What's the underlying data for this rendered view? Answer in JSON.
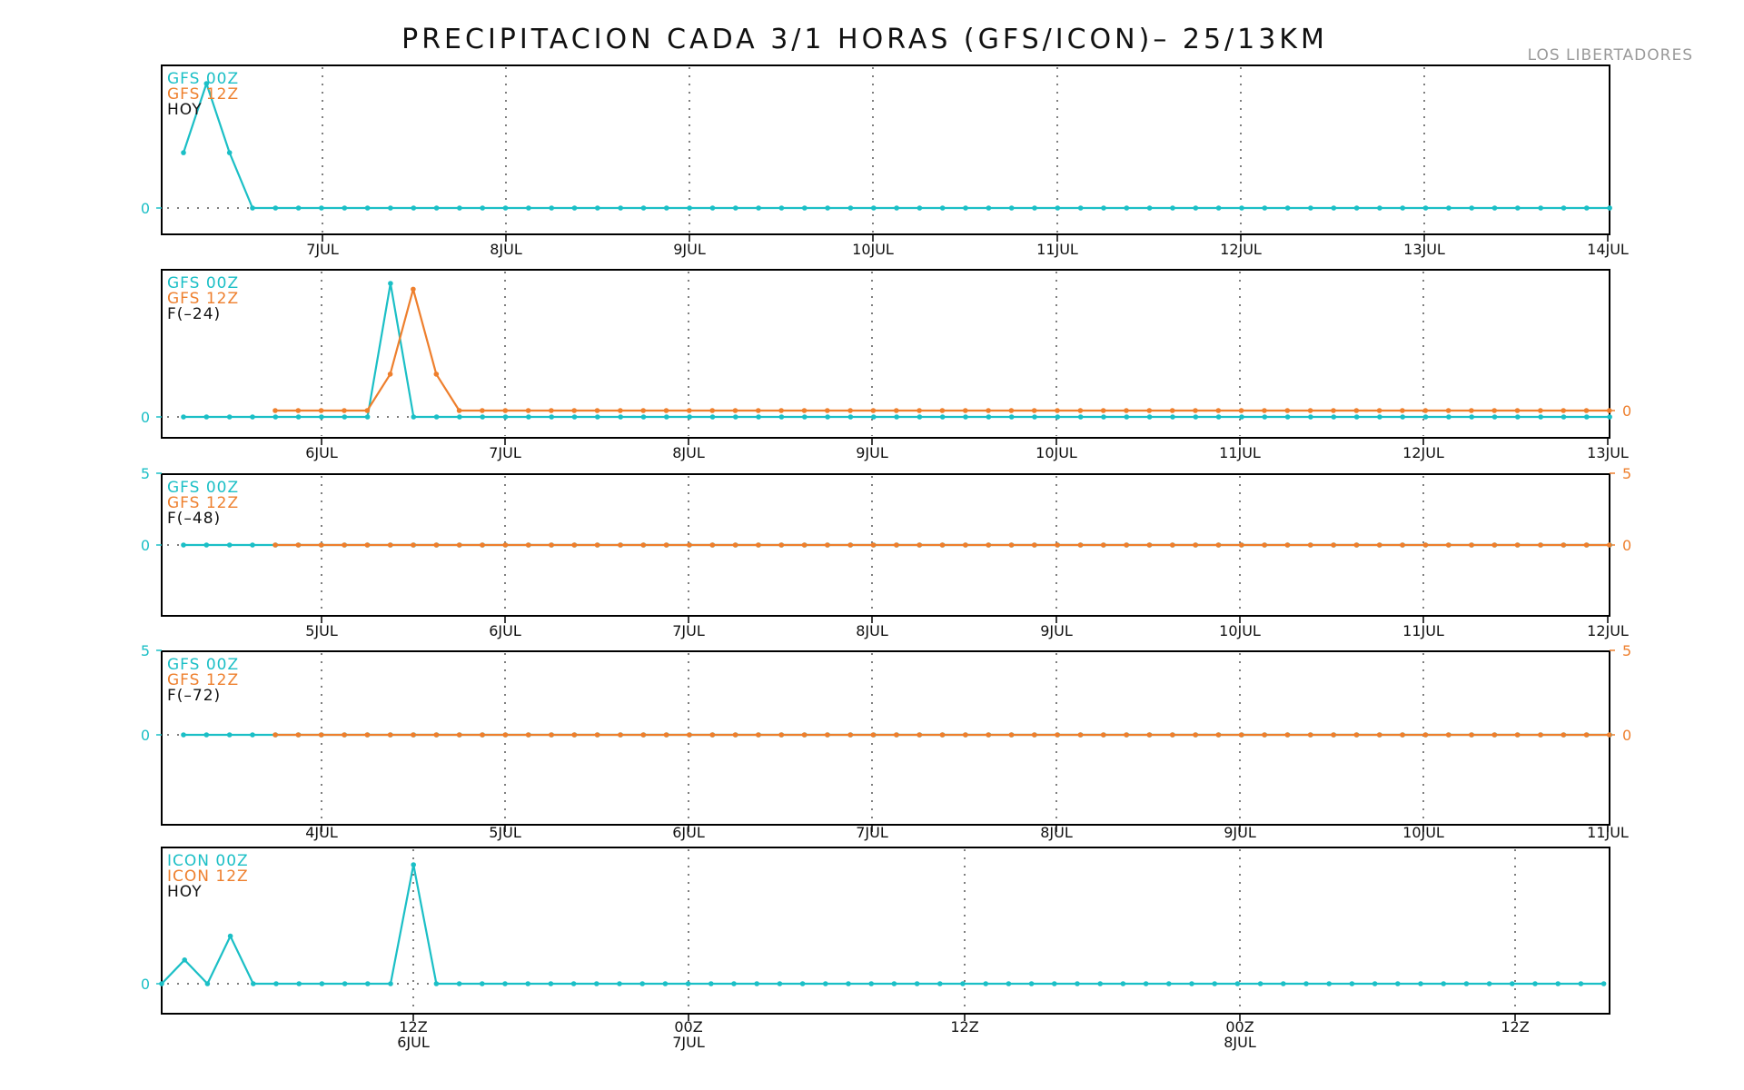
{
  "title": "PRECIPITACION CADA 3/1 HORAS (GFS/ICON)– 25/13KM",
  "station": "LOS LIBERTADORES",
  "colors": {
    "series_00z": "#1bbfc6",
    "series_12z": "#ee7f2d",
    "axis": "#000000",
    "grid": "#555555"
  },
  "chart_data": [
    {
      "type": "line",
      "legend": [
        "GFS 00Z",
        "GFS 12Z",
        "HOY"
      ],
      "x_tick_labels": [
        "7JUL",
        "8JUL",
        "9JUL",
        "10JUL",
        "11JUL",
        "12JUL",
        "13JUL",
        "14JUL"
      ],
      "y_ticks_left": [
        "0"
      ],
      "y_ticks_right": [],
      "series": [
        {
          "name": "GFS 00Z",
          "step_hours": 3,
          "values": [
            0.4,
            0.9,
            0.4,
            0,
            0,
            0,
            0,
            0,
            0,
            0,
            0,
            0,
            0,
            0,
            0,
            0,
            0,
            0,
            0,
            0,
            0,
            0,
            0,
            0,
            0,
            0,
            0,
            0,
            0,
            0,
            0,
            0,
            0,
            0,
            0,
            0,
            0,
            0,
            0,
            0,
            0,
            0,
            0,
            0,
            0,
            0,
            0,
            0,
            0,
            0,
            0,
            0,
            0,
            0,
            0,
            0,
            0,
            0,
            0,
            0,
            0,
            0,
            0,
            0
          ]
        }
      ]
    },
    {
      "type": "line",
      "legend": [
        "GFS 00Z",
        "GFS 12Z",
        "F(–24)"
      ],
      "x_tick_labels": [
        "6JUL",
        "7JUL",
        "8JUL",
        "9JUL",
        "10JUL",
        "11JUL",
        "12JUL",
        "13JUL"
      ],
      "y_ticks_left": [
        "0"
      ],
      "y_ticks_right": [
        "0"
      ],
      "series": [
        {
          "name": "GFS 00Z",
          "step_hours": 3,
          "values": [
            0,
            0,
            0,
            0,
            0,
            0,
            0,
            0,
            0,
            1.1,
            0,
            0,
            0,
            0,
            0,
            0,
            0,
            0,
            0,
            0,
            0,
            0,
            0,
            0,
            0,
            0,
            0,
            0,
            0,
            0,
            0,
            0,
            0,
            0,
            0,
            0,
            0,
            0,
            0,
            0,
            0,
            0,
            0,
            0,
            0,
            0,
            0,
            0,
            0,
            0,
            0,
            0,
            0,
            0,
            0,
            0,
            0,
            0,
            0,
            0,
            0,
            0,
            0,
            0
          ]
        },
        {
          "name": "GFS 12Z",
          "step_hours": 3,
          "values": [
            0,
            0,
            0,
            0,
            0,
            0.3,
            1.0,
            0.3,
            0,
            0,
            0,
            0,
            0,
            0,
            0,
            0,
            0,
            0,
            0,
            0,
            0,
            0,
            0,
            0,
            0,
            0,
            0,
            0,
            0,
            0,
            0,
            0,
            0,
            0,
            0,
            0,
            0,
            0,
            0,
            0,
            0,
            0,
            0,
            0,
            0,
            0,
            0,
            0,
            0,
            0,
            0,
            0,
            0,
            0,
            0,
            0,
            0,
            0,
            0,
            0,
            0
          ]
        }
      ]
    },
    {
      "type": "line",
      "legend": [
        "GFS 00Z",
        "GFS 12Z",
        "F(–48)"
      ],
      "x_tick_labels": [
        "5JUL",
        "6JUL",
        "7JUL",
        "8JUL",
        "9JUL",
        "10JUL",
        "11JUL",
        "12JUL"
      ],
      "y_ticks_left": [
        "5",
        "0"
      ],
      "y_ticks_right": [
        "5",
        "0"
      ],
      "series": [
        {
          "name": "GFS 00Z",
          "step_hours": 3,
          "values": [
            0,
            0,
            0,
            0,
            0,
            0,
            0,
            0,
            0,
            0,
            0,
            0,
            0,
            0,
            0,
            0,
            0,
            0,
            0,
            0.05,
            0.05,
            0,
            0,
            0,
            0,
            0,
            0,
            0,
            0,
            0,
            0,
            0,
            0,
            0,
            0,
            0,
            0,
            0,
            0,
            0,
            0,
            0,
            0,
            0,
            0,
            0,
            0,
            0,
            0,
            0,
            0,
            0,
            0,
            0,
            0,
            0,
            0,
            0,
            0,
            0,
            0,
            0,
            0,
            0
          ]
        },
        {
          "name": "GFS 12Z",
          "step_hours": 3,
          "values": [
            0,
            0,
            0,
            0,
            0,
            0,
            0,
            0,
            0,
            0,
            0,
            0,
            0,
            0,
            0,
            0,
            0,
            0,
            0,
            0,
            0,
            0,
            0,
            0,
            0,
            0,
            0,
            0,
            0,
            0,
            0,
            0,
            0,
            0,
            0,
            0,
            0,
            0,
            0,
            0,
            0,
            0,
            0,
            0,
            0,
            0,
            0,
            0,
            0,
            0,
            0,
            0,
            0,
            0,
            0,
            0,
            0,
            0,
            0,
            0,
            0
          ]
        }
      ]
    },
    {
      "type": "line",
      "legend": [
        "GFS 00Z",
        "GFS 12Z",
        "F(–72)"
      ],
      "x_tick_labels": [
        "4JUL",
        "5JUL",
        "6JUL",
        "7JUL",
        "8JUL",
        "9JUL",
        "10JUL",
        "11JUL"
      ],
      "y_ticks_left": [
        "5",
        "0"
      ],
      "y_ticks_right": [
        "5",
        "0"
      ],
      "series": [
        {
          "name": "GFS 00Z",
          "step_hours": 3,
          "values": [
            0,
            0,
            0,
            0,
            0,
            0,
            0,
            0,
            0,
            0,
            0,
            0,
            0,
            0,
            0,
            0,
            0,
            0,
            0,
            0,
            0,
            0,
            0,
            0,
            0,
            0,
            0,
            0,
            0,
            0,
            0,
            0,
            0,
            0,
            0,
            0,
            0,
            0,
            0,
            0,
            0,
            0,
            0,
            0,
            0,
            0,
            0,
            0,
            0,
            0,
            0,
            0,
            0,
            0,
            0,
            0,
            0,
            0,
            0,
            0,
            0,
            0,
            0,
            0,
            0
          ]
        },
        {
          "name": "GFS 12Z",
          "step_hours": 3,
          "values": [
            0,
            0,
            0,
            0,
            0,
            0,
            0,
            0,
            0,
            0,
            0,
            0,
            0,
            0,
            0,
            0,
            0,
            0,
            0,
            0,
            0,
            0,
            0,
            0,
            0,
            0,
            0,
            0,
            0,
            0,
            0,
            0,
            0,
            0,
            0,
            0,
            0,
            0,
            0,
            0,
            0,
            0,
            0,
            0,
            0,
            0,
            0,
            0,
            0,
            0,
            0,
            0,
            0,
            0,
            0,
            0,
            0,
            0,
            0,
            0,
            0
          ]
        }
      ]
    },
    {
      "type": "line",
      "legend": [
        "ICON 00Z",
        "ICON 12Z",
        "HOY"
      ],
      "x_tick_labels": [
        [
          "12Z",
          "6JUL"
        ],
        [
          "00Z",
          "7JUL"
        ],
        [
          "12Z",
          ""
        ],
        [
          "00Z",
          "8JUL"
        ],
        [
          "12Z",
          ""
        ]
      ],
      "y_ticks_left": [
        "0"
      ],
      "y_ticks_right": [],
      "series": [
        {
          "name": "ICON 00Z",
          "step_hours": 1,
          "values": [
            0,
            0.2,
            0,
            0.4,
            0,
            0,
            0,
            0,
            0,
            0,
            0,
            1.0,
            0,
            0,
            0,
            0,
            0,
            0,
            0,
            0,
            0,
            0,
            0,
            0,
            0,
            0,
            0,
            0,
            0,
            0,
            0,
            0,
            0,
            0,
            0,
            0,
            0,
            0,
            0,
            0,
            0,
            0,
            0,
            0,
            0,
            0,
            0,
            0,
            0,
            0,
            0,
            0,
            0,
            0,
            0,
            0,
            0,
            0,
            0,
            0,
            0,
            0,
            0,
            0,
            0
          ]
        }
      ]
    }
  ]
}
